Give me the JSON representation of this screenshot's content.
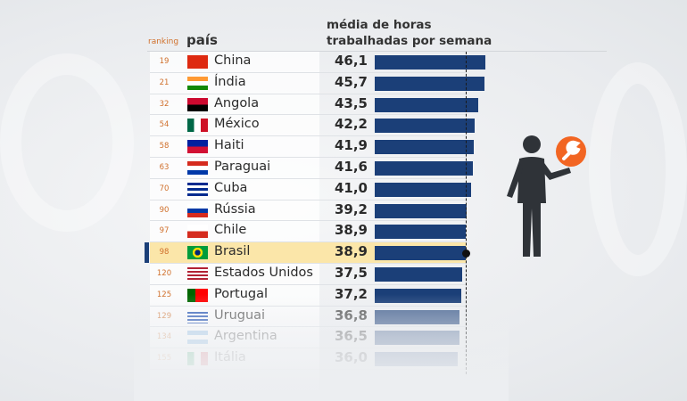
{
  "chart_data": {
    "type": "bar",
    "orientation": "horizontal",
    "headers": {
      "ranking": "ranking",
      "country": "país",
      "value": "média de horas\ntrabalhadas por semana"
    },
    "rows": [
      {
        "rank": "19",
        "country": "China",
        "value": "46,1",
        "v": 46.1,
        "flag": "china-flag-icon"
      },
      {
        "rank": "21",
        "country": "Índia",
        "value": "45,7",
        "v": 45.7,
        "flag": "india-flag-icon"
      },
      {
        "rank": "32",
        "country": "Angola",
        "value": "43,5",
        "v": 43.5,
        "flag": "angola-flag-icon"
      },
      {
        "rank": "54",
        "country": "México",
        "value": "42,2",
        "v": 42.2,
        "flag": "mexico-flag-icon"
      },
      {
        "rank": "58",
        "country": "Haiti",
        "value": "41,9",
        "v": 41.9,
        "flag": "haiti-flag-icon"
      },
      {
        "rank": "63",
        "country": "Paraguai",
        "value": "41,6",
        "v": 41.6,
        "flag": "paraguay-flag-icon"
      },
      {
        "rank": "70",
        "country": "Cuba",
        "value": "41,0",
        "v": 41.0,
        "flag": "cuba-flag-icon"
      },
      {
        "rank": "90",
        "country": "Rússia",
        "value": "39,2",
        "v": 39.2,
        "flag": "russia-flag-icon"
      },
      {
        "rank": "97",
        "country": "Chile",
        "value": "38,9",
        "v": 38.9,
        "flag": "chile-flag-icon"
      },
      {
        "rank": "98",
        "country": "Brasil",
        "value": "38,9",
        "v": 38.9,
        "flag": "brazil-flag-icon",
        "highlight": true
      },
      {
        "rank": "120",
        "country": "Estados Unidos",
        "value": "37,5",
        "v": 37.5,
        "flag": "usa-flag-icon"
      },
      {
        "rank": "125",
        "country": "Portugal",
        "value": "37,2",
        "v": 37.2,
        "flag": "portugal-flag-icon"
      },
      {
        "rank": "129",
        "country": "Uruguai",
        "value": "36,8",
        "v": 36.8,
        "flag": "uruguay-flag-icon"
      },
      {
        "rank": "134",
        "country": "Argentina",
        "value": "36,5",
        "v": 36.5,
        "flag": "argentina-flag-icon"
      },
      {
        "rank": "155",
        "country": "Itália",
        "value": "36,0",
        "v": 36.0,
        "flag": "italy-flag-icon"
      }
    ],
    "reference_line": 38.9,
    "colors": {
      "bar": "#1b3f78",
      "highlight_row": "#fbe6a9",
      "rank_text": "#d0702c",
      "accent": "#f26522"
    }
  },
  "illustration": {
    "icon": "worker-with-wrench-icon"
  }
}
